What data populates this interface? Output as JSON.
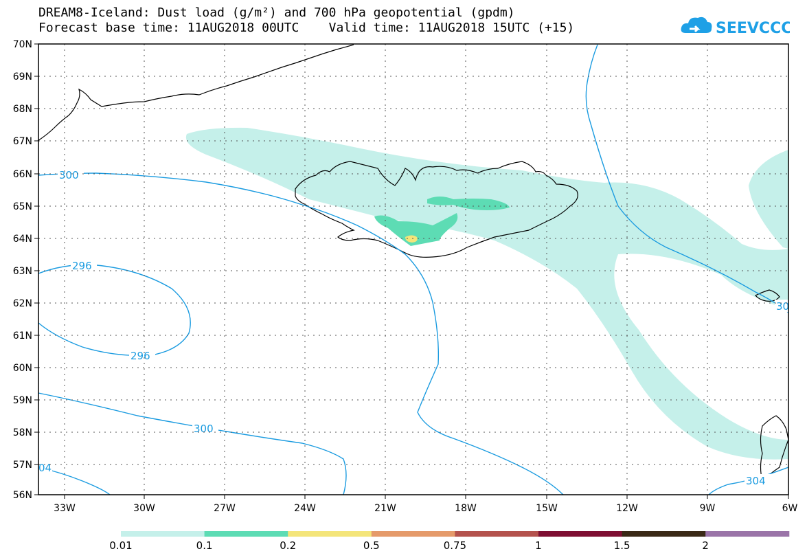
{
  "title_line1": "DREAM8-Iceland: Dust load (g/m²) and 700 hPa geopotential (gpdm)",
  "title_line2": "Forecast base time: 11AUG2018 00UTC    Valid time: 11AUG2018 15UTC (+15)",
  "logo_text": "SEEVCCC",
  "lat_labels": [
    "70N",
    "69N",
    "68N",
    "67N",
    "66N",
    "65N",
    "64N",
    "63N",
    "62N",
    "61N",
    "60N",
    "59N",
    "58N",
    "57N",
    "56N"
  ],
  "lon_labels": [
    "33W",
    "30W",
    "27W",
    "24W",
    "21W",
    "18W",
    "15W",
    "12W",
    "9W",
    "6W"
  ],
  "contour_labels": [
    "300",
    "296",
    "296",
    "300",
    "04",
    "304",
    "30"
  ],
  "colorbar": {
    "colors": [
      "#c5f0ea",
      "#5ddcb4",
      "#f4e57a",
      "#e59a6a",
      "#b4524d",
      "#7e0f32",
      "#3a2916",
      "#9a74a8"
    ],
    "labels": [
      "0.01",
      "0.1",
      "0.2",
      "0.5",
      "0.75",
      "1",
      "1.5",
      "2"
    ]
  },
  "colors": {
    "contour": "#1a9be0",
    "coast": "#000000"
  }
}
